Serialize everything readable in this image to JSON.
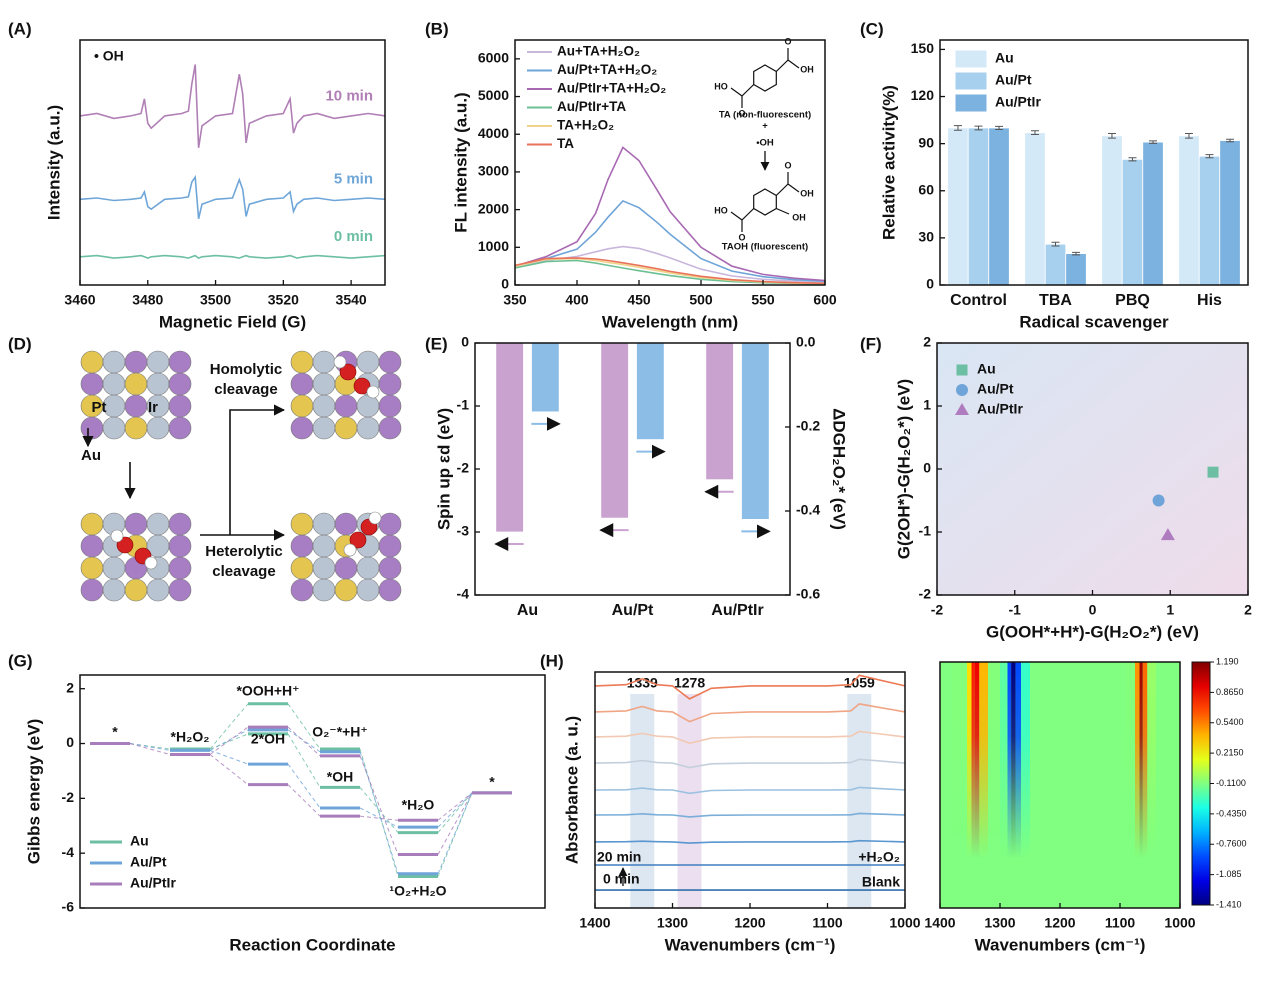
{
  "chart_data": [
    {
      "panel": "(A)",
      "type": "line",
      "annotation": "• OH",
      "xlabel": "Magnetic Field (G)",
      "ylabel": "Intensity (a.u.)",
      "xlim": [
        3460,
        3550
      ],
      "xticks": [
        3460,
        3480,
        3500,
        3520,
        3540
      ],
      "ylim": [
        0,
        10
      ],
      "x": [
        3460,
        3465,
        3470,
        3475,
        3478,
        3479,
        3480,
        3481,
        3485,
        3490,
        3492,
        3493,
        3494,
        3495,
        3496,
        3500,
        3505,
        3507,
        3508,
        3509,
        3510,
        3515,
        3520,
        3522,
        3523,
        3524,
        3526,
        3530,
        3535,
        3540,
        3545,
        3550
      ],
      "series": [
        {
          "name": "10 min",
          "color": "#b07fb5",
          "values": [
            6.9,
            7.0,
            6.8,
            6.9,
            7.0,
            7.6,
            6.6,
            6.4,
            6.9,
            7.0,
            7.1,
            8.2,
            9.0,
            5.6,
            6.5,
            6.9,
            7.0,
            8.6,
            7.8,
            5.8,
            6.6,
            6.9,
            7.0,
            7.6,
            6.2,
            6.6,
            6.9,
            7.0,
            6.8,
            6.9,
            7.0,
            6.9
          ]
        },
        {
          "name": "5 min",
          "color": "#6fa6d8",
          "values": [
            3.5,
            3.55,
            3.45,
            3.5,
            3.55,
            3.8,
            3.2,
            3.1,
            3.5,
            3.55,
            3.6,
            4.2,
            4.4,
            2.7,
            3.3,
            3.5,
            3.55,
            4.3,
            3.9,
            2.8,
            3.3,
            3.5,
            3.55,
            3.8,
            3.0,
            3.3,
            3.5,
            3.55,
            3.45,
            3.5,
            3.55,
            3.5
          ]
        },
        {
          "name": "0 min",
          "color": "#6dbfa3",
          "values": [
            1.15,
            1.2,
            1.1,
            1.15,
            1.2,
            1.15,
            1.1,
            1.15,
            1.2,
            1.15,
            1.1,
            1.15,
            1.2,
            1.1,
            1.15,
            1.2,
            1.15,
            1.1,
            1.15,
            1.2,
            1.15,
            1.1,
            1.15,
            1.2,
            1.15,
            1.1,
            1.15,
            1.2,
            1.15,
            1.1,
            1.15,
            1.2
          ]
        }
      ]
    },
    {
      "panel": "(B)",
      "type": "line",
      "xlabel": "Wavelength (nm)",
      "ylabel": "FL intensity (a.u.)",
      "legend": "upper left",
      "xlim": [
        350,
        600
      ],
      "xticks": [
        350,
        400,
        450,
        500,
        550,
        600
      ],
      "ylim": [
        0,
        6500
      ],
      "yticks": [
        0,
        1000,
        2000,
        3000,
        4000,
        5000,
        6000
      ],
      "x": [
        350,
        375,
        400,
        415,
        425,
        437,
        450,
        465,
        475,
        500,
        525,
        550,
        575,
        600
      ],
      "series": [
        {
          "name": "Au+TA+H₂O₂",
          "color": "#c9b6dc",
          "values": [
            500,
            650,
            760,
            880,
            960,
            1020,
            970,
            830,
            720,
            420,
            240,
            150,
            100,
            70
          ]
        },
        {
          "name": "Au/Pt+TA+H₂O₂",
          "color": "#6fa4d8",
          "values": [
            500,
            700,
            950,
            1400,
            1800,
            2230,
            2050,
            1650,
            1350,
            700,
            370,
            220,
            140,
            100
          ]
        },
        {
          "name": "Au/PtIr+TA+H₂O₂",
          "color": "#a869b3",
          "values": [
            500,
            750,
            1150,
            1900,
            2800,
            3650,
            3300,
            2500,
            1950,
            1000,
            500,
            280,
            180,
            120
          ]
        },
        {
          "name": "Au/PtIr+TA",
          "color": "#6dbf94",
          "values": [
            450,
            620,
            650,
            580,
            520,
            450,
            380,
            300,
            250,
            150,
            90,
            60,
            40,
            30
          ]
        },
        {
          "name": "TA+H₂O₂",
          "color": "#f0d28a",
          "values": [
            500,
            680,
            700,
            650,
            600,
            540,
            470,
            380,
            320,
            200,
            120,
            80,
            50,
            40
          ]
        },
        {
          "name": "TA",
          "color": "#e8735a",
          "values": [
            520,
            700,
            720,
            690,
            650,
            590,
            520,
            430,
            360,
            230,
            140,
            90,
            60,
            45
          ]
        }
      ],
      "inset": {
        "top": "TA (non-fluorescent)",
        "plus": "+",
        "radical": "•OH",
        "bottom": "TAOH (fluorescent)",
        "atoms": [
          "O",
          "OH",
          "HO",
          "O",
          "O",
          "OH",
          "HO",
          "O",
          "OH"
        ]
      }
    },
    {
      "panel": "(C)",
      "type": "bar",
      "xlabel": "Radical scavenger",
      "ylabel": "Relative activity(%)",
      "legend": "upper left",
      "categories": [
        "Control",
        "TBA",
        "PBQ",
        "His"
      ],
      "ylim": [
        0,
        156
      ],
      "yticks": [
        0,
        30,
        60,
        90,
        120,
        150
      ],
      "series": [
        {
          "name": "Au",
          "color": "#d4e9f8",
          "values": [
            100,
            97,
            95,
            95
          ],
          "errors": [
            1.5,
            1.2,
            1.5,
            1.5
          ]
        },
        {
          "name": "Au/Pt",
          "color": "#a7cfee",
          "values": [
            100,
            26,
            80,
            82
          ],
          "errors": [
            1.2,
            1.2,
            1,
            1
          ]
        },
        {
          "name": "Au/PtIr",
          "color": "#7cb2df",
          "values": [
            100,
            20,
            91,
            92
          ],
          "errors": [
            1,
            0.8,
            0.8,
            0.8
          ]
        }
      ]
    },
    {
      "panel": "(E)",
      "type": "bar",
      "ylabel": "Spin up εd (eV)",
      "y2label": "ΔDGH₂O₂* (eV)",
      "categories": [
        "Au",
        "Au/Pt",
        "Au/PtIr"
      ],
      "ylim": [
        -4,
        0
      ],
      "yticks": [
        0,
        -1,
        -2,
        -3,
        -4
      ],
      "y2lim": [
        -0.6,
        0
      ],
      "y2ticks": [
        {
          "value": 0,
          "label": "0.0"
        },
        -0.2,
        -0.4,
        -0.6
      ],
      "series": [
        {
          "color": "#c9a2cf",
          "values": [
            -3.0,
            -2.78,
            -2.17
          ]
        },
        {
          "color": "#8cbde6",
          "values": [
            -0.164,
            -0.23,
            -0.42
          ],
          "axis": "y2"
        }
      ]
    },
    {
      "panel": "(F)",
      "type": "scatter",
      "xlabel": "G(OOH*+H*)-G(H₂O₂*) (eV)",
      "ylabel": "G(2OH*)-G(H₂O₂*) (eV)",
      "legend": "upper left",
      "xlim": [
        -2,
        2
      ],
      "xticks": [
        -2,
        -1,
        0,
        1,
        2
      ],
      "ylim": [
        -2,
        2
      ],
      "yticks": [
        -2,
        -1,
        0,
        1,
        2
      ],
      "series": [
        {
          "name": "Au",
          "color": "#6dbfa3",
          "marker": "square",
          "x": [
            1.55
          ],
          "values": [
            -0.05
          ]
        },
        {
          "name": "Au/Pt",
          "color": "#6fa4d8",
          "marker": "circle",
          "x": [
            0.85
          ],
          "values": [
            -0.5
          ]
        },
        {
          "name": "Au/PtIr",
          "color": "#b07cc0",
          "marker": "triangle",
          "x": [
            0.97
          ],
          "values": [
            -1.05
          ]
        }
      ]
    },
    {
      "panel": "(G)",
      "type": "energy_diagram",
      "xlabel": "Reaction Coordinate",
      "ylabel": "Gibbs energy (eV)",
      "legend": "lower left",
      "ylim": [
        -6,
        2.5
      ],
      "yticks": [
        -6,
        -4,
        -2,
        0,
        2
      ],
      "states": [
        "*",
        "*H₂O₂",
        "*OOH+H⁺",
        "2*OH",
        "O₂⁻*+H⁺",
        "*OH",
        "*H₂O",
        "¹O₂+H₂O",
        "*"
      ],
      "series": [
        {
          "name": "Au",
          "color": "#6dbfa3",
          "values": [
            0,
            -0.2,
            1.45,
            0.35,
            -0.2,
            -1.6,
            -3.25,
            -4.85,
            -1.8
          ]
        },
        {
          "name": "Au/Pt",
          "color": "#6fa4d8",
          "values": [
            0,
            -0.25,
            0.5,
            -0.75,
            -0.3,
            -2.35,
            -3.05,
            -4.75,
            -1.8
          ]
        },
        {
          "name": "Au/PtIr",
          "color": "#a77dbb",
          "values": [
            0,
            -0.4,
            0.6,
            -1.5,
            -0.45,
            -2.65,
            -2.8,
            -4.05,
            -1.8
          ]
        }
      ]
    },
    {
      "panel": "(H)",
      "type": "line",
      "xlabel": "Wavenumbers (cm⁻¹)",
      "ylabel": "Absorbance (a. u.)",
      "xlim": [
        1400,
        1000
      ],
      "xticks": [
        1400,
        1300,
        1200,
        1100,
        1000
      ],
      "ylim": [
        0,
        10
      ],
      "peaks": [
        1339,
        1278,
        1059
      ],
      "annotations": {
        "start": "20 min",
        "end": "0 min",
        "reagent": "+H₂O₂",
        "blank": "Blank"
      },
      "x": [
        1400,
        1360,
        1339,
        1320,
        1300,
        1278,
        1250,
        1200,
        1100,
        1070,
        1059,
        1000
      ],
      "series": [
        {
          "color": "#2f6fae",
          "values": [
            0.76,
            0.76,
            0.76,
            0.76,
            0.76,
            0.76,
            0.76,
            0.76,
            0.76,
            0.76,
            0.76,
            0.76
          ]
        },
        {
          "color": "#3f7fc0",
          "values": [
            1.82,
            1.82,
            1.82,
            1.82,
            1.82,
            1.82,
            1.82,
            1.82,
            1.82,
            1.82,
            1.82,
            1.82
          ]
        },
        {
          "color": "#5a96cf",
          "values": [
            2.8,
            2.81,
            2.83,
            2.81,
            2.8,
            2.75,
            2.79,
            2.8,
            2.8,
            2.81,
            2.85,
            2.8
          ]
        },
        {
          "color": "#7aaed9",
          "values": [
            3.94,
            3.95,
            3.99,
            3.95,
            3.94,
            3.86,
            3.93,
            3.94,
            3.94,
            3.95,
            4.01,
            3.94
          ]
        },
        {
          "color": "#9bc1e0",
          "values": [
            5.0,
            5.01,
            5.08,
            5.01,
            5.0,
            4.86,
            4.98,
            5.0,
            5.0,
            5.01,
            5.11,
            5.0
          ]
        },
        {
          "color": "#c3d0dc",
          "values": [
            6.14,
            6.16,
            6.25,
            6.16,
            6.14,
            5.95,
            6.11,
            6.14,
            6.14,
            6.16,
            6.3,
            6.14
          ]
        },
        {
          "color": "#f2c9b3",
          "values": [
            7.25,
            7.28,
            7.4,
            7.28,
            7.25,
            6.98,
            7.2,
            7.25,
            7.25,
            7.28,
            7.48,
            7.25
          ]
        },
        {
          "color": "#f0a585",
          "values": [
            8.31,
            8.35,
            8.54,
            8.35,
            8.31,
            7.9,
            8.24,
            8.31,
            8.31,
            8.35,
            8.65,
            8.31
          ]
        },
        {
          "color": "#ec7a55",
          "values": [
            9.41,
            9.46,
            9.71,
            9.46,
            9.41,
            8.86,
            9.31,
            9.41,
            9.41,
            9.46,
            9.86,
            9.41
          ]
        }
      ]
    },
    {
      "type": "heatmap",
      "xlabel": "Wavenumbers (cm⁻¹)",
      "xlim": [
        1400,
        1000
      ],
      "xticks": [
        1400,
        1300,
        1200,
        1100,
        1000
      ],
      "x": [
        1400,
        1360,
        1350,
        1345,
        1339,
        1330,
        1310,
        1290,
        1285,
        1278,
        1270,
        1260,
        1240,
        1200,
        1100,
        1080,
        1070,
        1065,
        1059,
        1050,
        1030,
        1000
      ],
      "values": [
        -0.11,
        -0.1,
        0.3,
        0.8,
        0.9,
        0.4,
        -0.1,
        -0.2,
        -0.9,
        -1.4,
        -0.9,
        -0.3,
        -0.11,
        -0.11,
        -0.11,
        -0.1,
        0.5,
        1.1,
        0.6,
        -0.05,
        -0.11,
        -0.11
      ],
      "clim": [
        -1.41,
        1.19
      ],
      "cticks": [
        {
          "value": 1.19,
          "label": "1.190"
        },
        {
          "value": 0.865,
          "label": "0.8650"
        },
        {
          "value": 0.54,
          "label": "0.5400"
        },
        {
          "value": 0.215,
          "label": "0.2150"
        },
        {
          "value": -0.11,
          "label": "-0.1100"
        },
        {
          "value": -0.435,
          "label": "-0.4350"
        },
        {
          "value": -0.76,
          "label": "-0.7600"
        },
        -1.085,
        {
          "value": -1.41,
          "label": "-1.410"
        }
      ]
    }
  ],
  "diagram": {
    "panel": "(D)",
    "labels": {
      "pt": "Pt",
      "ir": "Ir",
      "au": "Au",
      "homolytic": "Homolytic cleavage",
      "heterolytic": "Heterolytic cleavage"
    }
  }
}
